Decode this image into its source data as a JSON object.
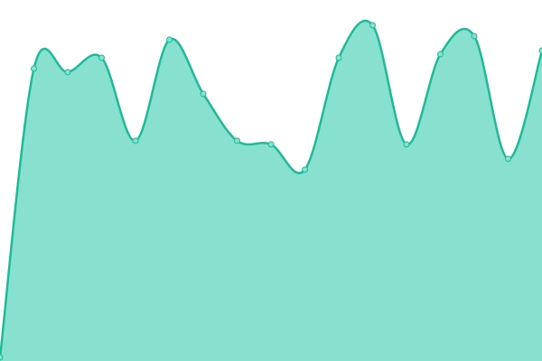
{
  "chart_data": {
    "type": "area",
    "categories": [
      null,
      null,
      null,
      null,
      null,
      null,
      null,
      null,
      null,
      null,
      null,
      null,
      null,
      null,
      null,
      null,
      null
    ],
    "values": [
      1,
      81,
      80,
      84,
      61,
      89,
      74,
      61,
      60,
      53,
      84,
      93,
      60,
      85,
      90,
      56,
      86
    ],
    "ylim": [
      0,
      100
    ],
    "color": "#1fba97",
    "fill": "#88e0cf",
    "smooth": true,
    "markers": true
  }
}
